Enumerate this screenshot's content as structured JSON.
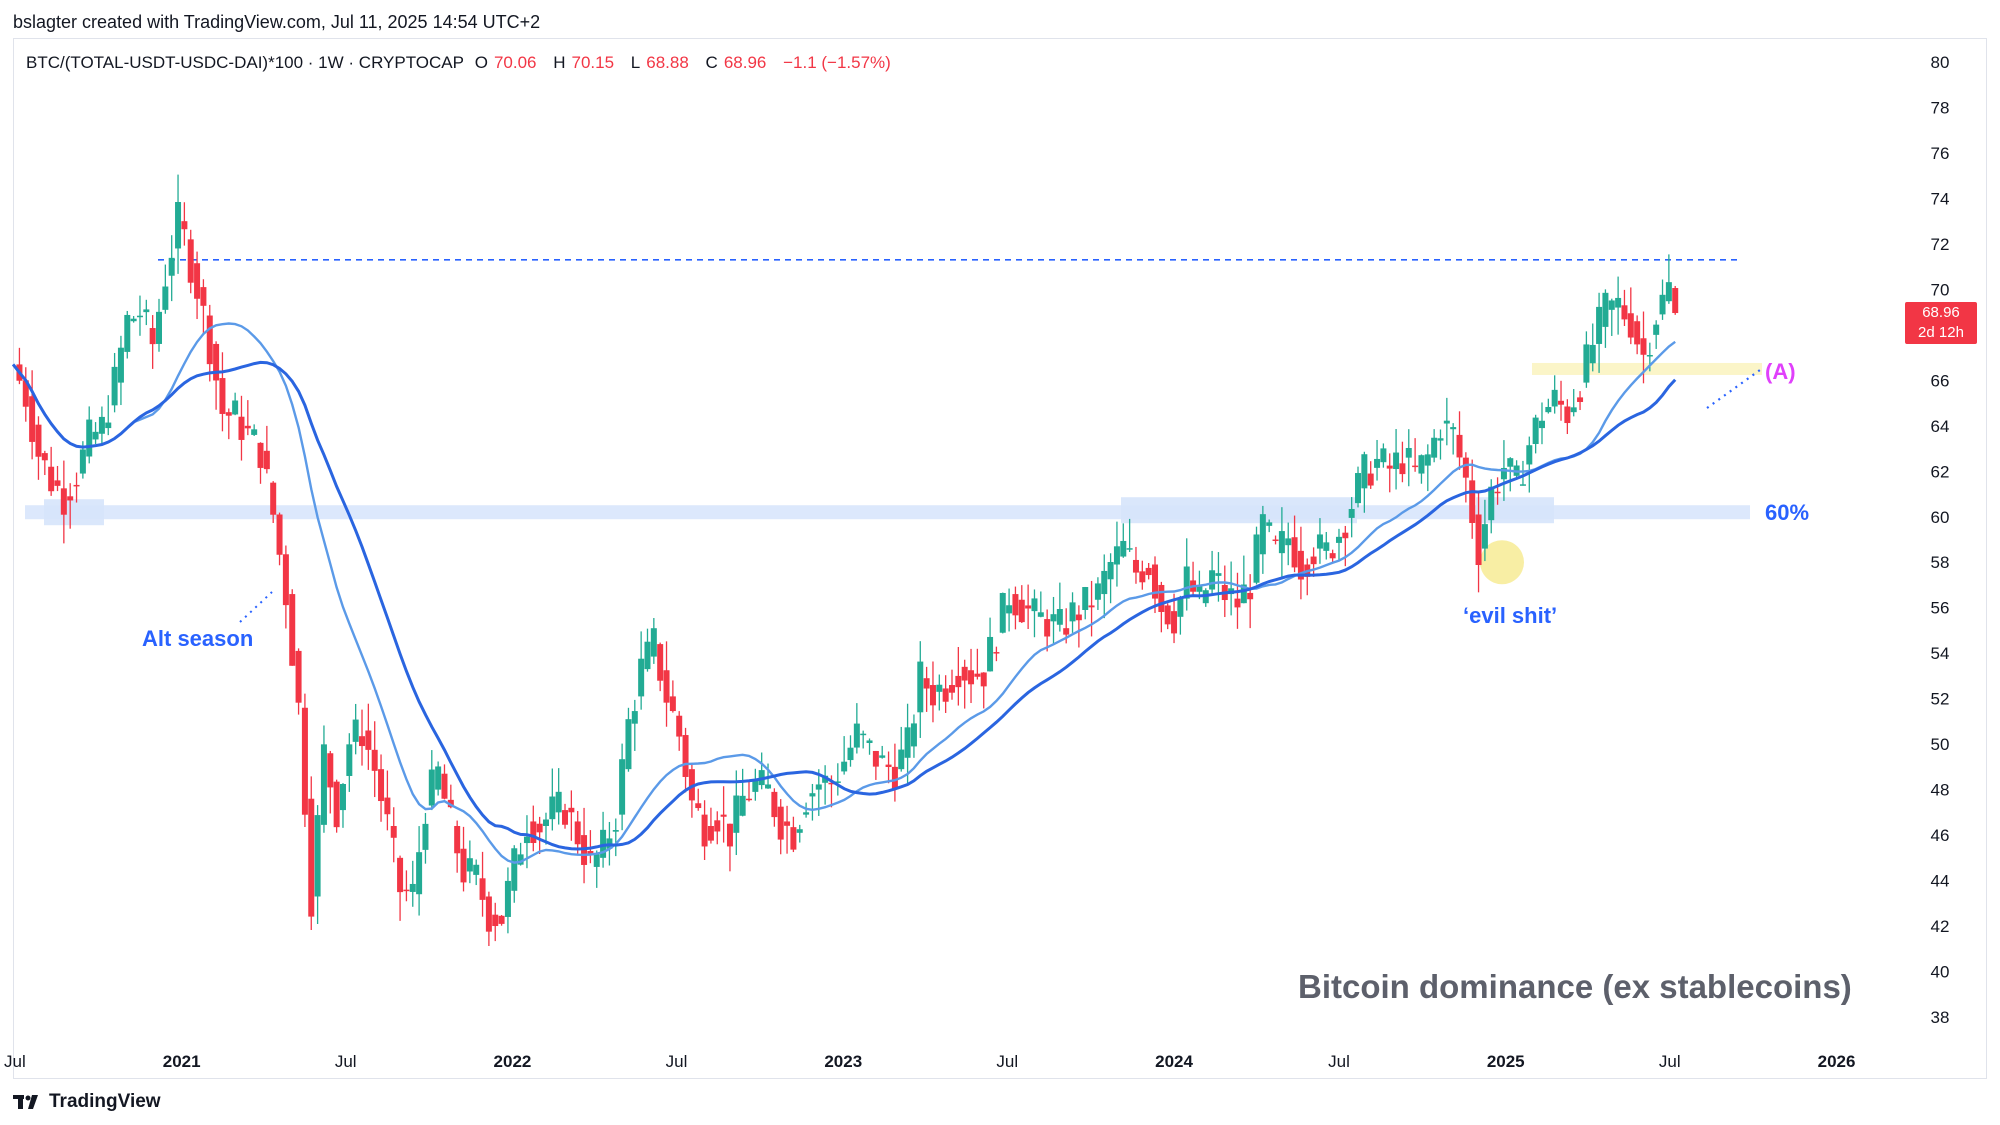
{
  "byline": "bslagter created with TradingView.com, Jul 11, 2025 14:54 UTC+2",
  "legend": {
    "symbol": "BTC/(TOTAL-USDT-USDC-DAI)*100 · 1W · CRYPTOCAP",
    "o_key": "O",
    "o_val": "70.06",
    "h_key": "H",
    "h_val": "70.15",
    "l_key": "L",
    "l_val": "68.88",
    "c_key": "C",
    "c_val": "68.96",
    "change": "−1.1 (−1.57%)"
  },
  "price_tag": {
    "price": "68.96",
    "countdown": "2d 12h"
  },
  "annotations": {
    "alt_season": "Alt season",
    "evil": "‘evil shit’",
    "sixty": "60%",
    "a_label": "(A)"
  },
  "watermark": "Bitcoin dominance (ex stablecoins)",
  "logo_text": "TradingView",
  "colors": {
    "up": "#22ab94",
    "down": "#f23645",
    "ma_dark": "#2a65e0",
    "ma_light": "#5b9ae8",
    "zone_blue": "#d6e4fb",
    "zone_yellow": "#fbf5c8",
    "accent_blue": "#2962ff",
    "accent_pink": "#e040fb"
  },
  "chart_data": {
    "type": "candlestick",
    "interval": "1W",
    "y_axis": {
      "range": [
        37,
        81
      ],
      "ticks": [
        38,
        40,
        42,
        44,
        46,
        48,
        50,
        52,
        54,
        56,
        58,
        60,
        62,
        64,
        66,
        68,
        70,
        72,
        74,
        76,
        78,
        80
      ],
      "position": "right"
    },
    "x_axis": {
      "start": "2020-07-01",
      "end": "2026-03-01",
      "tick_labels": [
        {
          "date": "2020-07-01",
          "label": "Jul"
        },
        {
          "date": "2021-01-01",
          "label": "2021"
        },
        {
          "date": "2021-07-01",
          "label": "Jul"
        },
        {
          "date": "2022-01-01",
          "label": "2022"
        },
        {
          "date": "2022-07-01",
          "label": "Jul"
        },
        {
          "date": "2023-01-01",
          "label": "2023"
        },
        {
          "date": "2023-07-01",
          "label": "Jul"
        },
        {
          "date": "2024-01-01",
          "label": "2024"
        },
        {
          "date": "2024-07-01",
          "label": "Jul"
        },
        {
          "date": "2025-01-01",
          "label": "2025"
        },
        {
          "date": "2025-07-01",
          "label": "Jul"
        },
        {
          "date": "2026-01-01",
          "label": "2026"
        }
      ]
    },
    "weekly_closes": [
      {
        "date": "2020-06-29",
        "close": 66.7
      },
      {
        "date": "2020-07-13",
        "close": 65.3
      },
      {
        "date": "2020-07-27",
        "close": 62.8
      },
      {
        "date": "2020-08-10",
        "close": 61.6
      },
      {
        "date": "2020-08-24",
        "close": 60.9
      },
      {
        "date": "2020-09-07",
        "close": 61.9
      },
      {
        "date": "2020-09-21",
        "close": 63.4
      },
      {
        "date": "2020-10-05",
        "close": 63.9
      },
      {
        "date": "2020-10-19",
        "close": 65.9
      },
      {
        "date": "2020-11-02",
        "close": 68.6
      },
      {
        "date": "2020-11-16",
        "close": 69.0
      },
      {
        "date": "2020-11-30",
        "close": 67.6
      },
      {
        "date": "2020-12-14",
        "close": 70.6
      },
      {
        "date": "2020-12-28",
        "close": 73.0
      },
      {
        "date": "2021-01-04",
        "close": 72.2
      },
      {
        "date": "2021-01-18",
        "close": 70.1
      },
      {
        "date": "2021-02-01",
        "close": 67.6
      },
      {
        "date": "2021-02-15",
        "close": 64.6
      },
      {
        "date": "2021-03-01",
        "close": 64.4
      },
      {
        "date": "2021-03-15",
        "close": 63.6
      },
      {
        "date": "2021-03-29",
        "close": 62.9
      },
      {
        "date": "2021-04-12",
        "close": 60.1
      },
      {
        "date": "2021-04-26",
        "close": 56.6
      },
      {
        "date": "2021-05-10",
        "close": 51.6
      },
      {
        "date": "2021-05-17",
        "close": 47.6
      },
      {
        "date": "2021-05-24",
        "close": 43.3
      },
      {
        "date": "2021-06-07",
        "close": 49.6
      },
      {
        "date": "2021-06-21",
        "close": 47.1
      },
      {
        "date": "2021-07-05",
        "close": 50.1
      },
      {
        "date": "2021-07-19",
        "close": 50.6
      },
      {
        "date": "2021-08-02",
        "close": 48.9
      },
      {
        "date": "2021-08-16",
        "close": 46.4
      },
      {
        "date": "2021-08-30",
        "close": 43.6
      },
      {
        "date": "2021-09-13",
        "close": 43.4
      },
      {
        "date": "2021-09-27",
        "close": 47.3
      },
      {
        "date": "2021-10-11",
        "close": 48.7
      },
      {
        "date": "2021-10-25",
        "close": 46.4
      },
      {
        "date": "2021-11-08",
        "close": 44.4
      },
      {
        "date": "2021-11-22",
        "close": 44.1
      },
      {
        "date": "2021-12-06",
        "close": 42.5
      },
      {
        "date": "2021-12-20",
        "close": 42.4
      },
      {
        "date": "2022-01-03",
        "close": 44.7
      },
      {
        "date": "2022-01-17",
        "close": 46.6
      },
      {
        "date": "2022-01-31",
        "close": 46.4
      },
      {
        "date": "2022-02-14",
        "close": 47.0
      },
      {
        "date": "2022-02-28",
        "close": 47.2
      },
      {
        "date": "2022-03-14",
        "close": 46.0
      },
      {
        "date": "2022-03-28",
        "close": 44.6
      },
      {
        "date": "2022-04-11",
        "close": 45.4
      },
      {
        "date": "2022-04-25",
        "close": 46.9
      },
      {
        "date": "2022-05-09",
        "close": 50.9
      },
      {
        "date": "2022-05-23",
        "close": 53.3
      },
      {
        "date": "2022-06-06",
        "close": 54.4
      },
      {
        "date": "2022-06-20",
        "close": 52.1
      },
      {
        "date": "2022-07-04",
        "close": 50.4
      },
      {
        "date": "2022-07-18",
        "close": 47.4
      },
      {
        "date": "2022-08-01",
        "close": 46.4
      },
      {
        "date": "2022-08-15",
        "close": 46.9
      },
      {
        "date": "2022-08-29",
        "close": 46.1
      },
      {
        "date": "2022-09-12",
        "close": 47.6
      },
      {
        "date": "2022-09-26",
        "close": 48.2
      },
      {
        "date": "2022-10-10",
        "close": 47.9
      },
      {
        "date": "2022-10-24",
        "close": 46.6
      },
      {
        "date": "2022-11-07",
        "close": 46.1
      },
      {
        "date": "2022-11-21",
        "close": 47.7
      },
      {
        "date": "2022-12-05",
        "close": 48.3
      },
      {
        "date": "2022-12-19",
        "close": 48.3
      },
      {
        "date": "2023-01-02",
        "close": 49.3
      },
      {
        "date": "2023-01-16",
        "close": 50.4
      },
      {
        "date": "2023-01-30",
        "close": 49.7
      },
      {
        "date": "2023-02-13",
        "close": 49.1
      },
      {
        "date": "2023-02-27",
        "close": 48.9
      },
      {
        "date": "2023-03-13",
        "close": 49.9
      },
      {
        "date": "2023-03-27",
        "close": 52.9
      },
      {
        "date": "2023-04-10",
        "close": 52.3
      },
      {
        "date": "2023-04-24",
        "close": 52.6
      },
      {
        "date": "2023-05-08",
        "close": 53.4
      },
      {
        "date": "2023-05-22",
        "close": 53.1
      },
      {
        "date": "2023-06-05",
        "close": 53.2
      },
      {
        "date": "2023-06-19",
        "close": 54.9
      },
      {
        "date": "2023-07-03",
        "close": 56.6
      },
      {
        "date": "2023-07-17",
        "close": 56.1
      },
      {
        "date": "2023-07-31",
        "close": 55.6
      },
      {
        "date": "2023-08-14",
        "close": 55.4
      },
      {
        "date": "2023-08-28",
        "close": 55.1
      },
      {
        "date": "2023-09-11",
        "close": 55.7
      },
      {
        "date": "2023-09-25",
        "close": 56.1
      },
      {
        "date": "2023-10-09",
        "close": 56.6
      },
      {
        "date": "2023-10-23",
        "close": 57.9
      },
      {
        "date": "2023-11-06",
        "close": 58.6
      },
      {
        "date": "2023-11-20",
        "close": 57.6
      },
      {
        "date": "2023-12-04",
        "close": 57.9
      },
      {
        "date": "2023-12-18",
        "close": 56.1
      },
      {
        "date": "2024-01-01",
        "close": 55.6
      },
      {
        "date": "2024-01-15",
        "close": 57.2
      },
      {
        "date": "2024-01-29",
        "close": 56.2
      },
      {
        "date": "2024-02-12",
        "close": 57.4
      },
      {
        "date": "2024-02-26",
        "close": 56.6
      },
      {
        "date": "2024-03-11",
        "close": 56.2
      },
      {
        "date": "2024-03-25",
        "close": 57.1
      },
      {
        "date": "2024-04-08",
        "close": 59.6
      },
      {
        "date": "2024-04-22",
        "close": 58.4
      },
      {
        "date": "2024-05-06",
        "close": 59.1
      },
      {
        "date": "2024-05-20",
        "close": 57.9
      },
      {
        "date": "2024-06-03",
        "close": 58.6
      },
      {
        "date": "2024-06-17",
        "close": 58.4
      },
      {
        "date": "2024-07-01",
        "close": 59.3
      },
      {
        "date": "2024-07-15",
        "close": 60.6
      },
      {
        "date": "2024-07-29",
        "close": 61.9
      },
      {
        "date": "2024-08-12",
        "close": 62.4
      },
      {
        "date": "2024-08-26",
        "close": 62.1
      },
      {
        "date": "2024-09-09",
        "close": 62.6
      },
      {
        "date": "2024-09-23",
        "close": 61.9
      },
      {
        "date": "2024-10-07",
        "close": 62.6
      },
      {
        "date": "2024-10-21",
        "close": 64.1
      },
      {
        "date": "2024-11-04",
        "close": 63.6
      },
      {
        "date": "2024-11-18",
        "close": 61.6
      },
      {
        "date": "2024-12-02",
        "close": 58.6
      },
      {
        "date": "2024-12-16",
        "close": 61.1
      },
      {
        "date": "2024-12-30",
        "close": 62.2
      },
      {
        "date": "2025-01-13",
        "close": 61.4
      },
      {
        "date": "2025-01-27",
        "close": 63.2
      },
      {
        "date": "2025-02-10",
        "close": 64.6
      },
      {
        "date": "2025-02-24",
        "close": 65.1
      },
      {
        "date": "2025-03-10",
        "close": 64.6
      },
      {
        "date": "2025-03-24",
        "close": 65.9
      },
      {
        "date": "2025-04-07",
        "close": 67.6
      },
      {
        "date": "2025-04-21",
        "close": 69.1
      },
      {
        "date": "2025-05-05",
        "close": 69.3
      },
      {
        "date": "2025-05-19",
        "close": 68.6
      },
      {
        "date": "2025-06-02",
        "close": 67.1
      },
      {
        "date": "2025-06-16",
        "close": 68.9
      },
      {
        "date": "2025-06-30",
        "close": 70.06
      },
      {
        "date": "2025-07-07",
        "close": 68.96
      }
    ],
    "last_bar": {
      "open": 70.06,
      "high": 70.15,
      "low": 68.88,
      "close": 68.96
    },
    "resistance_line": {
      "value": 71.3,
      "style": "dashed"
    },
    "zones": [
      {
        "name": "60% support",
        "value": 60.2
      },
      {
        "name": "(A) zone",
        "value": 66.5
      }
    ],
    "moving_averages": [
      "fast (light blue)",
      "slow (dark blue)"
    ]
  }
}
